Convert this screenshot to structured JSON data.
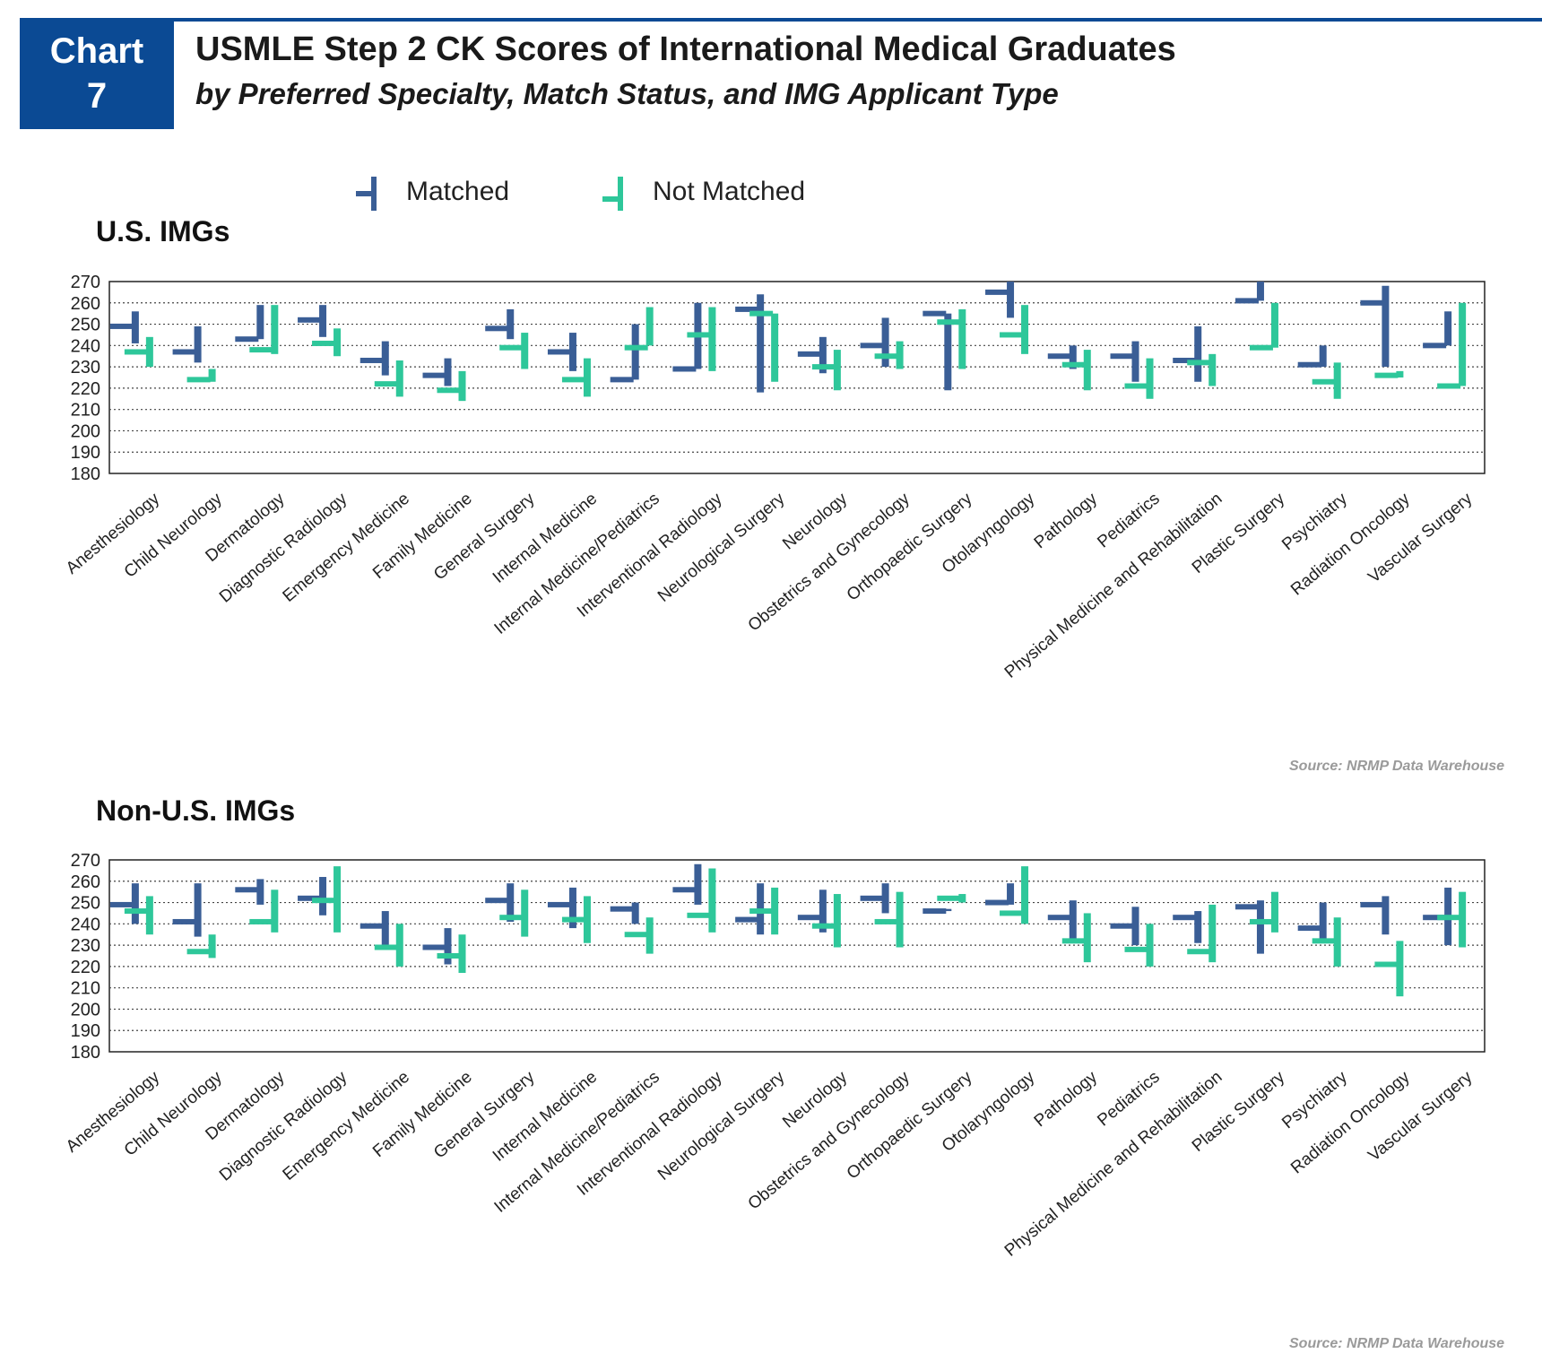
{
  "header": {
    "badge_line1": "Chart",
    "badge_line2": "7",
    "title": "USMLE Step 2 CK Scores of International Medical Graduates",
    "subtitle": "by Preferred Specialty, Match Status, and IMG Applicant Type"
  },
  "legend": {
    "matched_label": "Matched",
    "not_matched_label": "Not Matched"
  },
  "colors": {
    "matched": "#3a5e96",
    "not_matched": "#2ec79a",
    "header_blue": "#0b4a94"
  },
  "source_note": "Source: NRMP Data Warehouse",
  "chart_data": [
    {
      "type": "range",
      "title": "U.S. IMGs",
      "ylim": [
        180,
        270
      ],
      "yticks": [
        180,
        190,
        200,
        210,
        220,
        230,
        240,
        250,
        260,
        270
      ],
      "grid": "horizontal-dotted",
      "legend_position": "top",
      "categories": [
        "Anesthesiology",
        "Child Neurology",
        "Dermatology",
        "Diagnostic Radiology",
        "Emergency Medicine",
        "Family Medicine",
        "General Surgery",
        "Internal Medicine",
        "Internal Medicine/Pediatrics",
        "Interventional Radiology",
        "Neurological Surgery",
        "Neurology",
        "Obstetrics and Gynecology",
        "Orthopaedic Surgery",
        "Otolaryngology",
        "Pathology",
        "Pediatrics",
        "Physical Medicine and Rehabilitation",
        "Plastic Surgery",
        "Psychiatry",
        "Radiation Oncology",
        "Vascular Surgery"
      ],
      "series": [
        {
          "name": "Matched",
          "high": [
            256,
            249,
            259,
            259,
            242,
            234,
            257,
            246,
            250,
            260,
            264,
            244,
            253,
            255,
            270,
            240,
            242,
            249,
            270,
            240,
            268,
            256
          ],
          "low": [
            241,
            232,
            243,
            244,
            226,
            221,
            243,
            228,
            224,
            229,
            218,
            227,
            230,
            219,
            253,
            229,
            223,
            223,
            261,
            230,
            230,
            240
          ],
          "median": [
            249,
            237,
            243,
            252,
            233,
            226,
            248,
            237,
            224,
            229,
            257,
            236,
            240,
            255,
            265,
            235,
            235,
            233,
            261,
            231,
            260,
            240
          ]
        },
        {
          "name": "Not Matched",
          "high": [
            244,
            229,
            259,
            248,
            233,
            228,
            246,
            234,
            258,
            258,
            255,
            238,
            242,
            257,
            259,
            238,
            234,
            236,
            260,
            232,
            228,
            260
          ],
          "low": [
            230,
            223,
            236,
            235,
            216,
            214,
            229,
            216,
            240,
            228,
            223,
            219,
            229,
            229,
            236,
            219,
            215,
            221,
            239,
            215,
            225,
            221
          ],
          "median": [
            237,
            224,
            238,
            241,
            222,
            219,
            239,
            224,
            239,
            245,
            255,
            230,
            235,
            251,
            245,
            231,
            221,
            232,
            239,
            223,
            226,
            221
          ]
        }
      ]
    },
    {
      "type": "range",
      "title": "Non-U.S. IMGs",
      "ylim": [
        180,
        270
      ],
      "yticks": [
        180,
        190,
        200,
        210,
        220,
        230,
        240,
        250,
        260,
        270
      ],
      "grid": "horizontal-dotted",
      "legend_position": "top",
      "categories": [
        "Anesthesiology",
        "Child Neurology",
        "Dermatology",
        "Diagnostic Radiology",
        "Emergency Medicine",
        "Family Medicine",
        "General Surgery",
        "Internal Medicine",
        "Internal Medicine/Pediatrics",
        "Interventional Radiology",
        "Neurological Surgery",
        "Neurology",
        "Obstetrics and Gynecology",
        "Orthopaedic Surgery",
        "Otolaryngology",
        "Pathology",
        "Pediatrics",
        "Physical Medicine and Rehabilitation",
        "Plastic Surgery",
        "Psychiatry",
        "Radiation Oncology",
        "Vascular Surgery"
      ],
      "series": [
        {
          "name": "Matched",
          "high": [
            259,
            259,
            261,
            262,
            246,
            238,
            259,
            257,
            250,
            268,
            259,
            256,
            259,
            247,
            259,
            251,
            248,
            246,
            251,
            250,
            253,
            257
          ],
          "low": [
            240,
            234,
            249,
            244,
            229,
            221,
            241,
            238,
            240,
            249,
            235,
            236,
            245,
            246,
            249,
            233,
            230,
            231,
            226,
            232,
            235,
            230
          ],
          "median": [
            249,
            241,
            256,
            252,
            239,
            229,
            251,
            249,
            247,
            256,
            242,
            243,
            252,
            246,
            250,
            243,
            239,
            243,
            248,
            238,
            249,
            243
          ]
        },
        {
          "name": "Not Matched",
          "high": [
            253,
            235,
            256,
            267,
            240,
            235,
            256,
            253,
            243,
            266,
            257,
            254,
            255,
            254,
            267,
            245,
            240,
            249,
            255,
            243,
            232,
            255
          ],
          "low": [
            235,
            224,
            236,
            236,
            220,
            217,
            234,
            231,
            226,
            236,
            235,
            229,
            229,
            250,
            240,
            222,
            220,
            222,
            236,
            220,
            206,
            229
          ],
          "median": [
            246,
            227,
            241,
            251,
            229,
            225,
            243,
            242,
            235,
            244,
            246,
            239,
            241,
            252,
            245,
            232,
            228,
            227,
            241,
            232,
            221,
            243
          ]
        }
      ]
    }
  ]
}
